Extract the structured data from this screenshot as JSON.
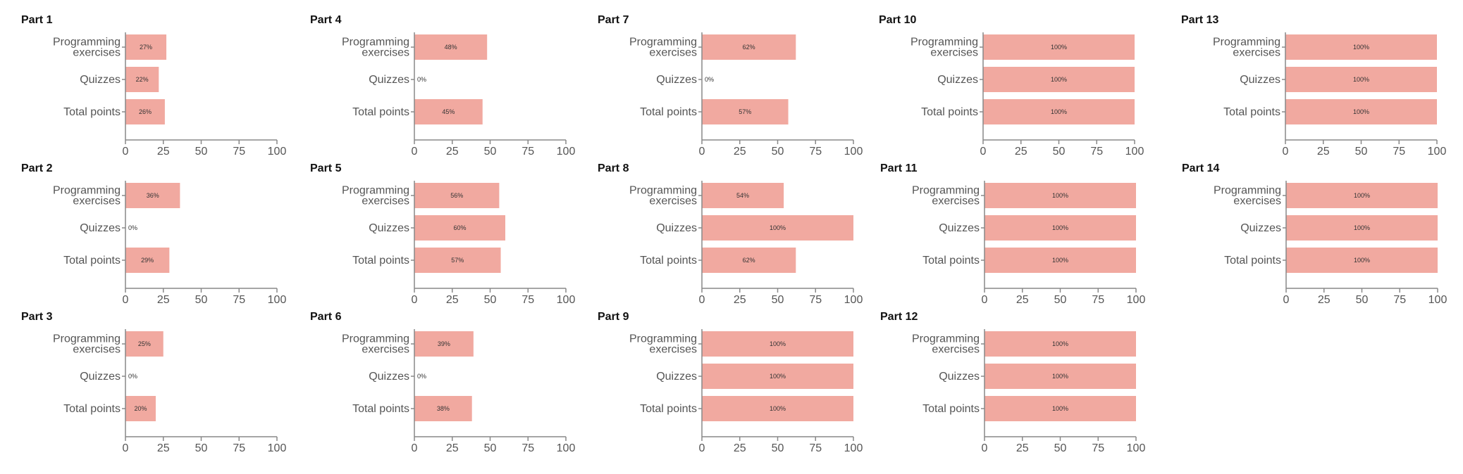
{
  "style": {
    "bar_color": "#f1a9a0",
    "axis_color": "#888888",
    "label_color": "#555555",
    "title_color": "#111111"
  },
  "chart_data": [
    {
      "type": "bar",
      "orientation": "horizontal",
      "title": "Part 1",
      "categories": [
        [
          "Programming",
          "exercises"
        ],
        [
          "Quizzes"
        ],
        [
          "Total points"
        ]
      ],
      "values": [
        27,
        22,
        26
      ],
      "value_labels": [
        "27%",
        "22%",
        "26%"
      ],
      "xlim": [
        0,
        100
      ],
      "xticks": [
        "0",
        "25",
        "50",
        "75",
        "100"
      ]
    },
    {
      "type": "bar",
      "orientation": "horizontal",
      "title": "Part 2",
      "categories": [
        [
          "Programming",
          "exercises"
        ],
        [
          "Quizzes"
        ],
        [
          "Total points"
        ]
      ],
      "values": [
        36,
        0,
        29
      ],
      "value_labels": [
        "36%",
        "0%",
        "29%"
      ],
      "xlim": [
        0,
        100
      ],
      "xticks": [
        "0",
        "25",
        "50",
        "75",
        "100"
      ]
    },
    {
      "type": "bar",
      "orientation": "horizontal",
      "title": "Part 3",
      "categories": [
        [
          "Programming",
          "exercises"
        ],
        [
          "Quizzes"
        ],
        [
          "Total points"
        ]
      ],
      "values": [
        25,
        0,
        20
      ],
      "value_labels": [
        "25%",
        "0%",
        "20%"
      ],
      "xlim": [
        0,
        100
      ],
      "xticks": [
        "0",
        "25",
        "50",
        "75",
        "100"
      ]
    },
    {
      "type": "bar",
      "orientation": "horizontal",
      "title": "Part 4",
      "categories": [
        [
          "Programming",
          "exercises"
        ],
        [
          "Quizzes"
        ],
        [
          "Total points"
        ]
      ],
      "values": [
        48,
        0,
        45
      ],
      "value_labels": [
        "48%",
        "0%",
        "45%"
      ],
      "xlim": [
        0,
        100
      ],
      "xticks": [
        "0",
        "25",
        "50",
        "75",
        "100"
      ]
    },
    {
      "type": "bar",
      "orientation": "horizontal",
      "title": "Part 5",
      "categories": [
        [
          "Programming",
          "exercises"
        ],
        [
          "Quizzes"
        ],
        [
          "Total points"
        ]
      ],
      "values": [
        56,
        60,
        57
      ],
      "value_labels": [
        "56%",
        "60%",
        "57%"
      ],
      "xlim": [
        0,
        100
      ],
      "xticks": [
        "0",
        "25",
        "50",
        "75",
        "100"
      ]
    },
    {
      "type": "bar",
      "orientation": "horizontal",
      "title": "Part 6",
      "categories": [
        [
          "Programming",
          "exercises"
        ],
        [
          "Quizzes"
        ],
        [
          "Total points"
        ]
      ],
      "values": [
        39,
        0,
        38
      ],
      "value_labels": [
        "39%",
        "0%",
        "38%"
      ],
      "xlim": [
        0,
        100
      ],
      "xticks": [
        "0",
        "25",
        "50",
        "75",
        "100"
      ]
    },
    {
      "type": "bar",
      "orientation": "horizontal",
      "title": "Part 7",
      "categories": [
        [
          "Programming",
          "exercises"
        ],
        [
          "Quizzes"
        ],
        [
          "Total points"
        ]
      ],
      "values": [
        62,
        0,
        57
      ],
      "value_labels": [
        "62%",
        "0%",
        "57%"
      ],
      "xlim": [
        0,
        100
      ],
      "xticks": [
        "0",
        "25",
        "50",
        "75",
        "100"
      ]
    },
    {
      "type": "bar",
      "orientation": "horizontal",
      "title": "Part 8",
      "categories": [
        [
          "Programming",
          "exercises"
        ],
        [
          "Quizzes"
        ],
        [
          "Total points"
        ]
      ],
      "values": [
        54,
        100,
        62
      ],
      "value_labels": [
        "54%",
        "100%",
        "62%"
      ],
      "xlim": [
        0,
        100
      ],
      "xticks": [
        "0",
        "25",
        "50",
        "75",
        "100"
      ]
    },
    {
      "type": "bar",
      "orientation": "horizontal",
      "title": "Part 9",
      "categories": [
        [
          "Programming",
          "exercises"
        ],
        [
          "Quizzes"
        ],
        [
          "Total points"
        ]
      ],
      "values": [
        100,
        100,
        100
      ],
      "value_labels": [
        "100%",
        "100%",
        "100%"
      ],
      "xlim": [
        0,
        100
      ],
      "xticks": [
        "0",
        "25",
        "50",
        "75",
        "100"
      ]
    },
    {
      "type": "bar",
      "orientation": "horizontal",
      "title": "Part 10",
      "categories": [
        [
          "Programming",
          "exercises"
        ],
        [
          "Quizzes"
        ],
        [
          "Total points"
        ]
      ],
      "values": [
        100,
        100,
        100
      ],
      "value_labels": [
        "100%",
        "100%",
        "100%"
      ],
      "xlim": [
        0,
        100
      ],
      "xticks": [
        "0",
        "25",
        "50",
        "75",
        "100"
      ]
    },
    {
      "type": "bar",
      "orientation": "horizontal",
      "title": "Part 11",
      "categories": [
        [
          "Programming",
          "exercises"
        ],
        [
          "Quizzes"
        ],
        [
          "Total points"
        ]
      ],
      "values": [
        100,
        100,
        100
      ],
      "value_labels": [
        "100%",
        "100%",
        "100%"
      ],
      "xlim": [
        0,
        100
      ],
      "xticks": [
        "0",
        "25",
        "50",
        "75",
        "100"
      ]
    },
    {
      "type": "bar",
      "orientation": "horizontal",
      "title": "Part 12",
      "categories": [
        [
          "Programming",
          "exercises"
        ],
        [
          "Quizzes"
        ],
        [
          "Total points"
        ]
      ],
      "values": [
        100,
        100,
        100
      ],
      "value_labels": [
        "100%",
        "100%",
        "100%"
      ],
      "xlim": [
        0,
        100
      ],
      "xticks": [
        "0",
        "25",
        "50",
        "75",
        "100"
      ]
    },
    {
      "type": "bar",
      "orientation": "horizontal",
      "title": "Part 13",
      "categories": [
        [
          "Programming",
          "exercises"
        ],
        [
          "Quizzes"
        ],
        [
          "Total points"
        ]
      ],
      "values": [
        100,
        100,
        100
      ],
      "value_labels": [
        "100%",
        "100%",
        "100%"
      ],
      "xlim": [
        0,
        100
      ],
      "xticks": [
        "0",
        "25",
        "50",
        "75",
        "100"
      ]
    },
    {
      "type": "bar",
      "orientation": "horizontal",
      "title": "Part 14",
      "categories": [
        [
          "Programming",
          "exercises"
        ],
        [
          "Quizzes"
        ],
        [
          "Total points"
        ]
      ],
      "values": [
        100,
        100,
        100
      ],
      "value_labels": [
        "100%",
        "100%",
        "100%"
      ],
      "xlim": [
        0,
        100
      ],
      "xticks": [
        "0",
        "25",
        "50",
        "75",
        "100"
      ]
    }
  ]
}
